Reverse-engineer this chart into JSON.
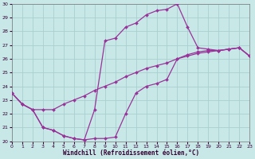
{
  "xlabel": "Windchill (Refroidissement éolien,°C)",
  "xlim": [
    0,
    23
  ],
  "ylim": [
    20,
    30
  ],
  "xticks": [
    0,
    1,
    2,
    3,
    4,
    5,
    6,
    7,
    8,
    9,
    10,
    11,
    12,
    13,
    14,
    15,
    16,
    17,
    18,
    19,
    20,
    21,
    22,
    23
  ],
  "yticks": [
    20,
    21,
    22,
    23,
    24,
    25,
    26,
    27,
    28,
    29,
    30
  ],
  "bg_color": "#c8e8e8",
  "grid_color": "#a8d0d0",
  "line_color": "#993399",
  "line1_x": [
    0,
    1,
    2,
    3,
    4,
    5,
    6,
    7,
    8,
    9,
    10,
    11,
    12,
    13,
    14,
    15,
    16,
    17,
    18,
    19,
    20,
    21,
    22,
    23
  ],
  "line1_y": [
    23.5,
    22.7,
    22.3,
    22.3,
    22.3,
    22.7,
    23.0,
    23.3,
    23.7,
    24.0,
    24.3,
    24.7,
    25.0,
    25.3,
    25.5,
    25.7,
    26.0,
    26.2,
    26.4,
    26.5,
    26.6,
    26.7,
    26.8,
    26.2
  ],
  "line2_x": [
    0,
    1,
    2,
    3,
    4,
    5,
    6,
    7,
    8,
    9,
    10,
    11,
    12,
    13,
    14,
    15,
    16,
    17,
    18,
    19,
    20,
    21,
    22,
    23
  ],
  "line2_y": [
    23.5,
    22.7,
    22.3,
    21.0,
    20.8,
    20.4,
    20.2,
    20.1,
    20.2,
    20.2,
    20.3,
    22.0,
    23.5,
    24.0,
    24.2,
    24.5,
    26.0,
    26.3,
    26.5,
    26.6,
    26.6,
    26.7,
    26.8,
    26.2
  ],
  "line3_x": [
    0,
    1,
    2,
    3,
    4,
    5,
    6,
    7,
    8,
    9,
    10,
    11,
    12,
    13,
    14,
    15,
    16,
    17,
    18,
    19,
    20,
    21,
    22,
    23
  ],
  "line3_y": [
    23.5,
    22.7,
    22.3,
    21.0,
    20.8,
    20.4,
    20.2,
    20.1,
    22.3,
    27.3,
    27.5,
    28.3,
    28.6,
    29.2,
    29.5,
    29.6,
    30.0,
    28.3,
    26.8,
    26.7,
    26.6,
    26.7,
    26.8,
    26.2
  ]
}
